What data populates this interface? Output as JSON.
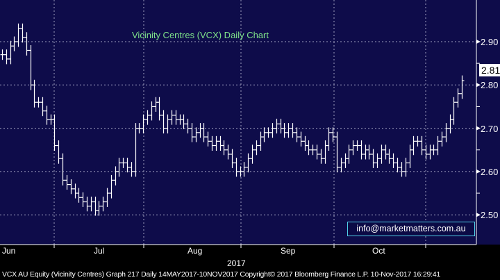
{
  "chart_data": {
    "type": "ohlc",
    "title": "Vicinity Centres (VCX) Daily Chart",
    "xlabel": "2017",
    "ylabel": "",
    "month_labels": [
      "Jun",
      "Jul",
      "Aug",
      "Sep",
      "Oct"
    ],
    "y_ticks": [
      "2.90",
      "2.80",
      "2.70",
      "2.60",
      "2.50"
    ],
    "ylim": [
      2.435,
      2.995
    ],
    "last_price": "2.81",
    "bar_range": 0.04,
    "close": [
      2.87,
      2.86,
      2.89,
      2.9,
      2.93,
      2.91,
      2.88,
      2.8,
      2.76,
      2.76,
      2.74,
      2.72,
      2.72,
      2.66,
      2.63,
      2.58,
      2.57,
      2.56,
      2.55,
      2.54,
      2.53,
      2.52,
      2.53,
      2.51,
      2.52,
      2.53,
      2.55,
      2.58,
      2.6,
      2.62,
      2.62,
      2.61,
      2.6,
      2.7,
      2.7,
      2.72,
      2.73,
      2.75,
      2.76,
      2.73,
      2.7,
      2.72,
      2.73,
      2.72,
      2.72,
      2.71,
      2.7,
      2.68,
      2.69,
      2.7,
      2.68,
      2.67,
      2.66,
      2.67,
      2.66,
      2.65,
      2.64,
      2.62,
      2.6,
      2.6,
      2.61,
      2.63,
      2.65,
      2.66,
      2.68,
      2.69,
      2.69,
      2.7,
      2.71,
      2.7,
      2.69,
      2.7,
      2.69,
      2.68,
      2.67,
      2.66,
      2.65,
      2.65,
      2.64,
      2.63,
      2.66,
      2.69,
      2.68,
      2.61,
      2.62,
      2.63,
      2.65,
      2.66,
      2.66,
      2.64,
      2.65,
      2.64,
      2.62,
      2.63,
      2.65,
      2.64,
      2.63,
      2.62,
      2.61,
      2.6,
      2.62,
      2.65,
      2.67,
      2.67,
      2.65,
      2.64,
      2.65,
      2.65,
      2.67,
      2.68,
      2.7,
      2.72,
      2.76,
      2.78,
      2.81
    ]
  },
  "watermark": "info@marketmatters.com.au",
  "footer": "VCX AU Equity (Vicinity Centres) Graph 217  Daily 14MAY2017-10NOV2017  Copyright© 2017 Bloomberg Finance L.P.  10-Nov-2017 16:29:41",
  "colors": {
    "background": "#0e0c4a",
    "bars": "#ffffff",
    "title": "#7fe38a"
  }
}
